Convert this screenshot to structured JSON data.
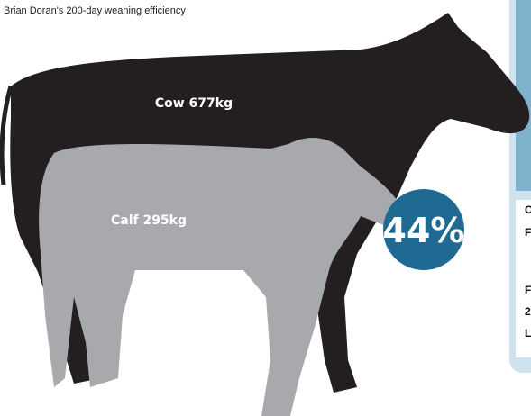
{
  "subtitle": "Brian Doran's 200-day weaning efficiency",
  "cow_label": "Cow 677kg",
  "calf_label": "Calf 295kg",
  "efficiency": "44%",
  "side_letters": [
    "C",
    "F",
    "F",
    "2",
    "L"
  ]
}
